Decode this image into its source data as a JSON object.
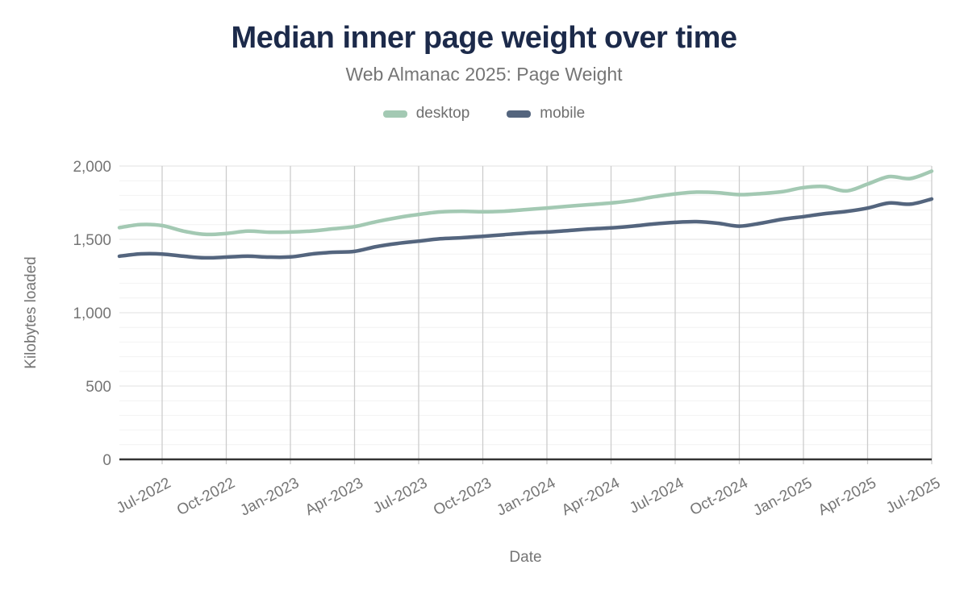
{
  "chart_data": {
    "type": "line",
    "title": "Median inner page weight over time",
    "subtitle": "Web Almanac 2025: Page Weight",
    "xlabel": "Date",
    "ylabel": "Kilobytes loaded",
    "ylim": [
      0,
      2000
    ],
    "y_ticks": [
      {
        "value": 0,
        "label": "0"
      },
      {
        "value": 500,
        "label": "500"
      },
      {
        "value": 1000,
        "label": "1,000"
      },
      {
        "value": 1500,
        "label": "1,500"
      },
      {
        "value": 2000,
        "label": "2,000"
      }
    ],
    "y_minor_grid_step": 100,
    "grid": {
      "vertical": true,
      "horizontal": true
    },
    "legend_position": "top",
    "x": [
      "May-2022",
      "Jun-2022",
      "Jul-2022",
      "Aug-2022",
      "Sep-2022",
      "Oct-2022",
      "Nov-2022",
      "Dec-2022",
      "Jan-2023",
      "Feb-2023",
      "Mar-2023",
      "Apr-2023",
      "May-2023",
      "Jun-2023",
      "Jul-2023",
      "Aug-2023",
      "Sep-2023",
      "Oct-2023",
      "Nov-2023",
      "Dec-2023",
      "Jan-2024",
      "Feb-2024",
      "Mar-2024",
      "Apr-2024",
      "May-2024",
      "Jun-2024",
      "Jul-2024",
      "Aug-2024",
      "Sep-2024",
      "Oct-2024",
      "Nov-2024",
      "Dec-2024",
      "Jan-2025",
      "Feb-2025",
      "Mar-2025",
      "Apr-2025",
      "May-2025",
      "Jun-2025",
      "Jul-2025"
    ],
    "x_tick_labels": [
      "Jul-2022",
      "Oct-2022",
      "Jan-2023",
      "Apr-2023",
      "Jul-2023",
      "Oct-2023",
      "Jan-2024",
      "Apr-2024",
      "Jul-2024",
      "Oct-2024",
      "Jan-2025",
      "Apr-2025",
      "Jul-2025"
    ],
    "series": [
      {
        "name": "desktop",
        "color": "#a3c9b3",
        "values": [
          1580,
          1601,
          1594,
          1556,
          1534,
          1540,
          1556,
          1549,
          1550,
          1557,
          1572,
          1587,
          1620,
          1648,
          1670,
          1687,
          1692,
          1688,
          1692,
          1703,
          1714,
          1726,
          1737,
          1748,
          1765,
          1790,
          1810,
          1822,
          1818,
          1805,
          1812,
          1825,
          1853,
          1860,
          1830,
          1877,
          1928,
          1915,
          1965
        ]
      },
      {
        "name": "mobile",
        "color": "#54657e",
        "values": [
          1385,
          1401,
          1400,
          1385,
          1374,
          1379,
          1385,
          1379,
          1380,
          1400,
          1412,
          1418,
          1450,
          1472,
          1488,
          1504,
          1511,
          1521,
          1532,
          1543,
          1550,
          1560,
          1571,
          1578,
          1590,
          1605,
          1616,
          1621,
          1610,
          1590,
          1610,
          1637,
          1655,
          1675,
          1690,
          1713,
          1748,
          1740,
          1775
        ]
      }
    ]
  },
  "style_colors": {
    "title": "#1c2a4a",
    "subtitle": "#757575",
    "tick_text": "#757575",
    "axis_line": "#333333",
    "grid_vertical": "#cccccc",
    "grid_major": "#e2e2e2",
    "grid_minor": "#f2f2f2"
  }
}
